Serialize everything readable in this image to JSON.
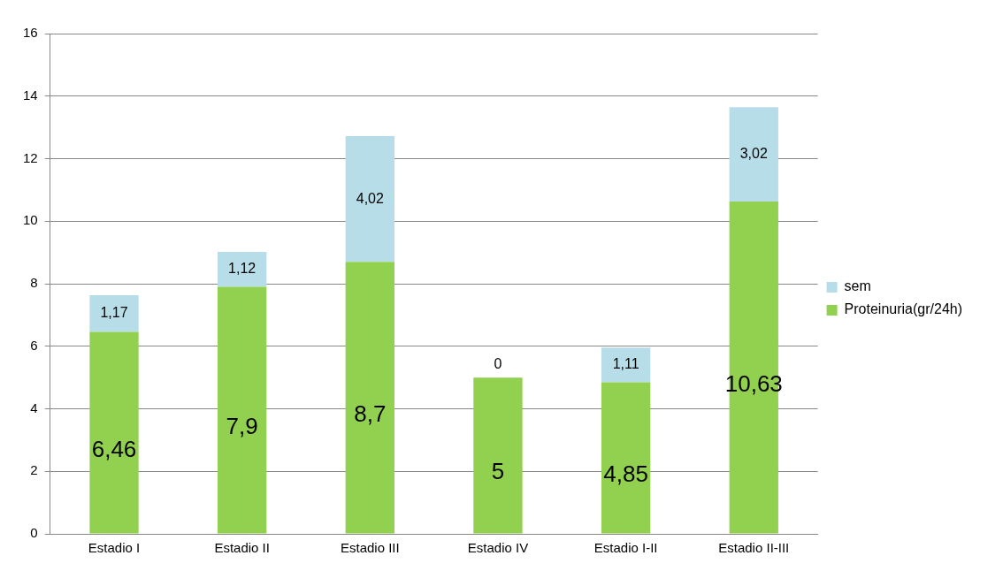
{
  "chart_data": {
    "type": "bar",
    "stacked": true,
    "categories": [
      "Estadio I",
      "Estadio II",
      "Estadio III",
      "Estadio IV",
      "Estadio I-II",
      "Estadio II-III"
    ],
    "series": [
      {
        "name": "Proteinuria(gr/24h)",
        "color": "#92d050",
        "values": [
          6.46,
          7.9,
          8.7,
          5,
          4.85,
          10.63
        ],
        "value_labels": [
          "6,46",
          "7,9",
          "8,7",
          "5",
          "4,85",
          "10,63"
        ]
      },
      {
        "name": "sem",
        "color": "#b7dde8",
        "values": [
          1.17,
          1.12,
          4.02,
          0,
          1.11,
          3.02
        ],
        "value_labels": [
          "1,17",
          "1,12",
          "4,02",
          "0",
          "1,11",
          "3,02"
        ]
      }
    ],
    "ylim": [
      0,
      16
    ],
    "yticks": [
      0,
      2,
      4,
      6,
      8,
      10,
      12,
      14,
      16
    ],
    "grid": "y",
    "legend": "right"
  }
}
